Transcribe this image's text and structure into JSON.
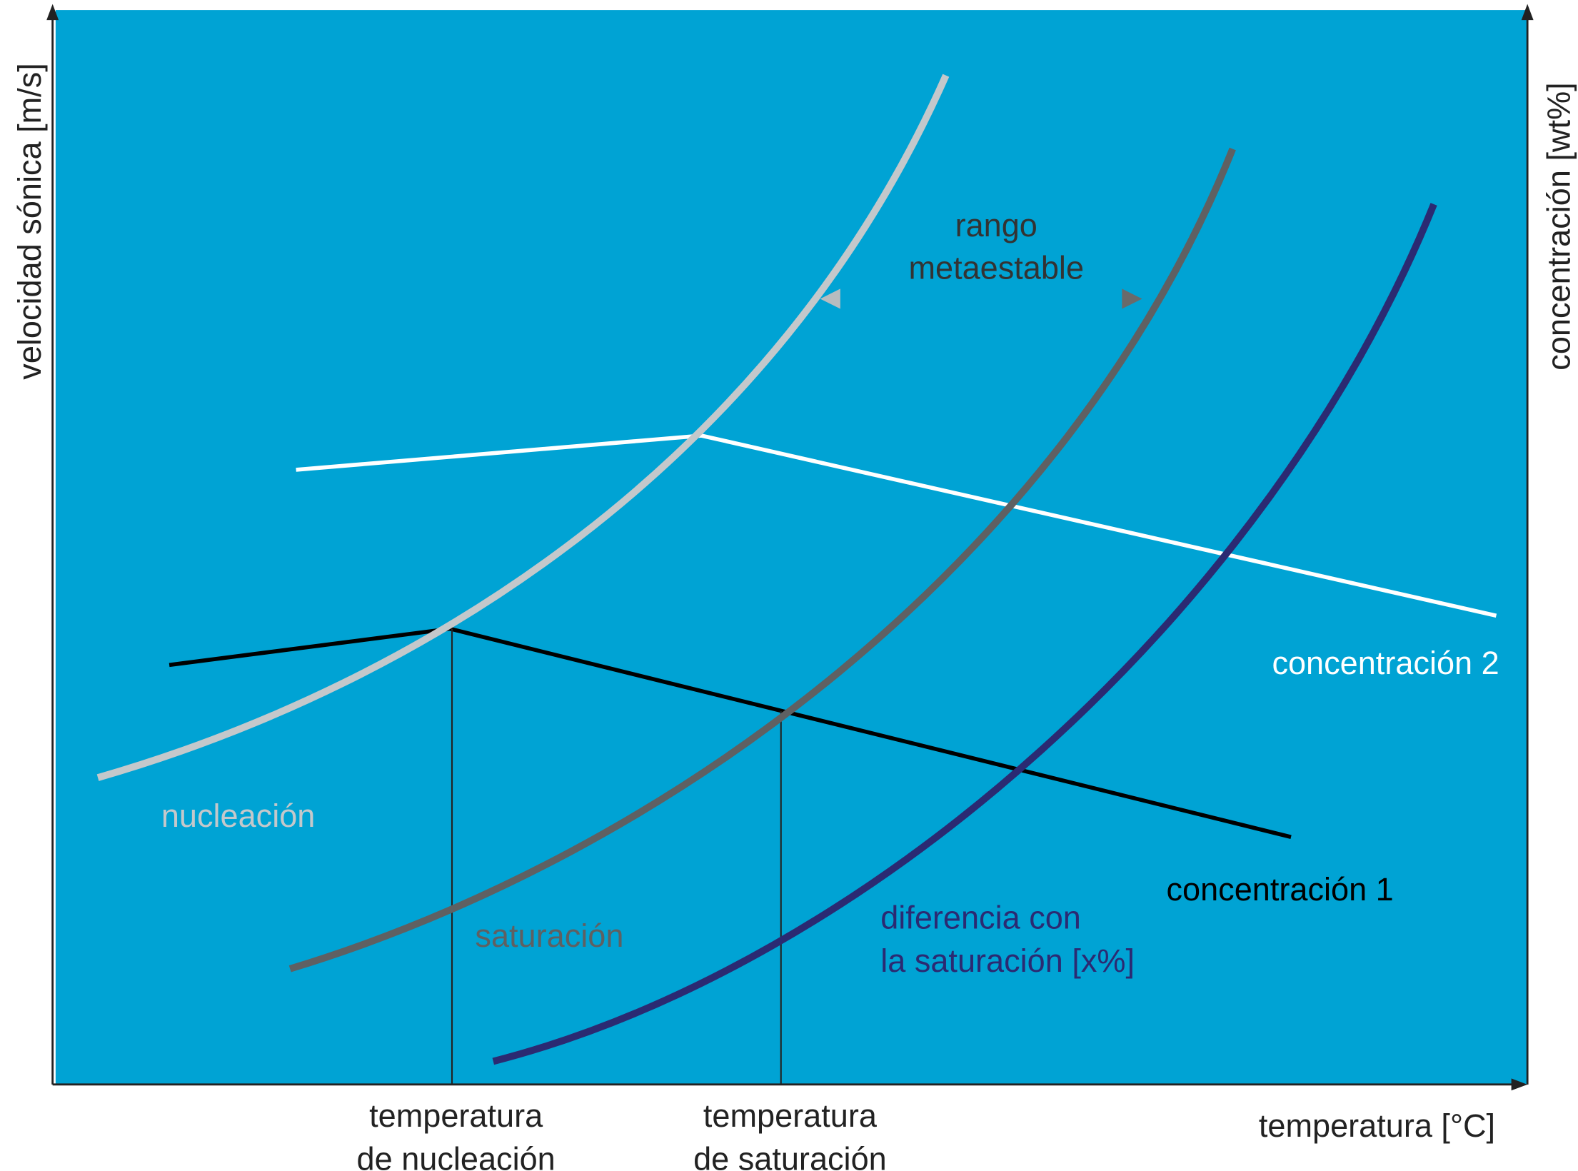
{
  "axes": {
    "y_left": "velocidad sónica [m/s]",
    "y_right": "concentración [wt%]",
    "x": "temperatura [°C]"
  },
  "curves": {
    "nucleation": "nucleación",
    "saturation": "saturación",
    "difference": [
      "diferencia con",
      "la saturación [x%]"
    ]
  },
  "lines": {
    "concentration_1": "concentración 1",
    "concentration_2": "concentración 2"
  },
  "annotations": {
    "metastable_range": [
      "rango",
      "metaestable"
    ],
    "nucleation_temperature": [
      "temperatura",
      "de nucleación"
    ],
    "saturation_temperature": [
      "temperatura",
      "de saturación"
    ]
  }
}
